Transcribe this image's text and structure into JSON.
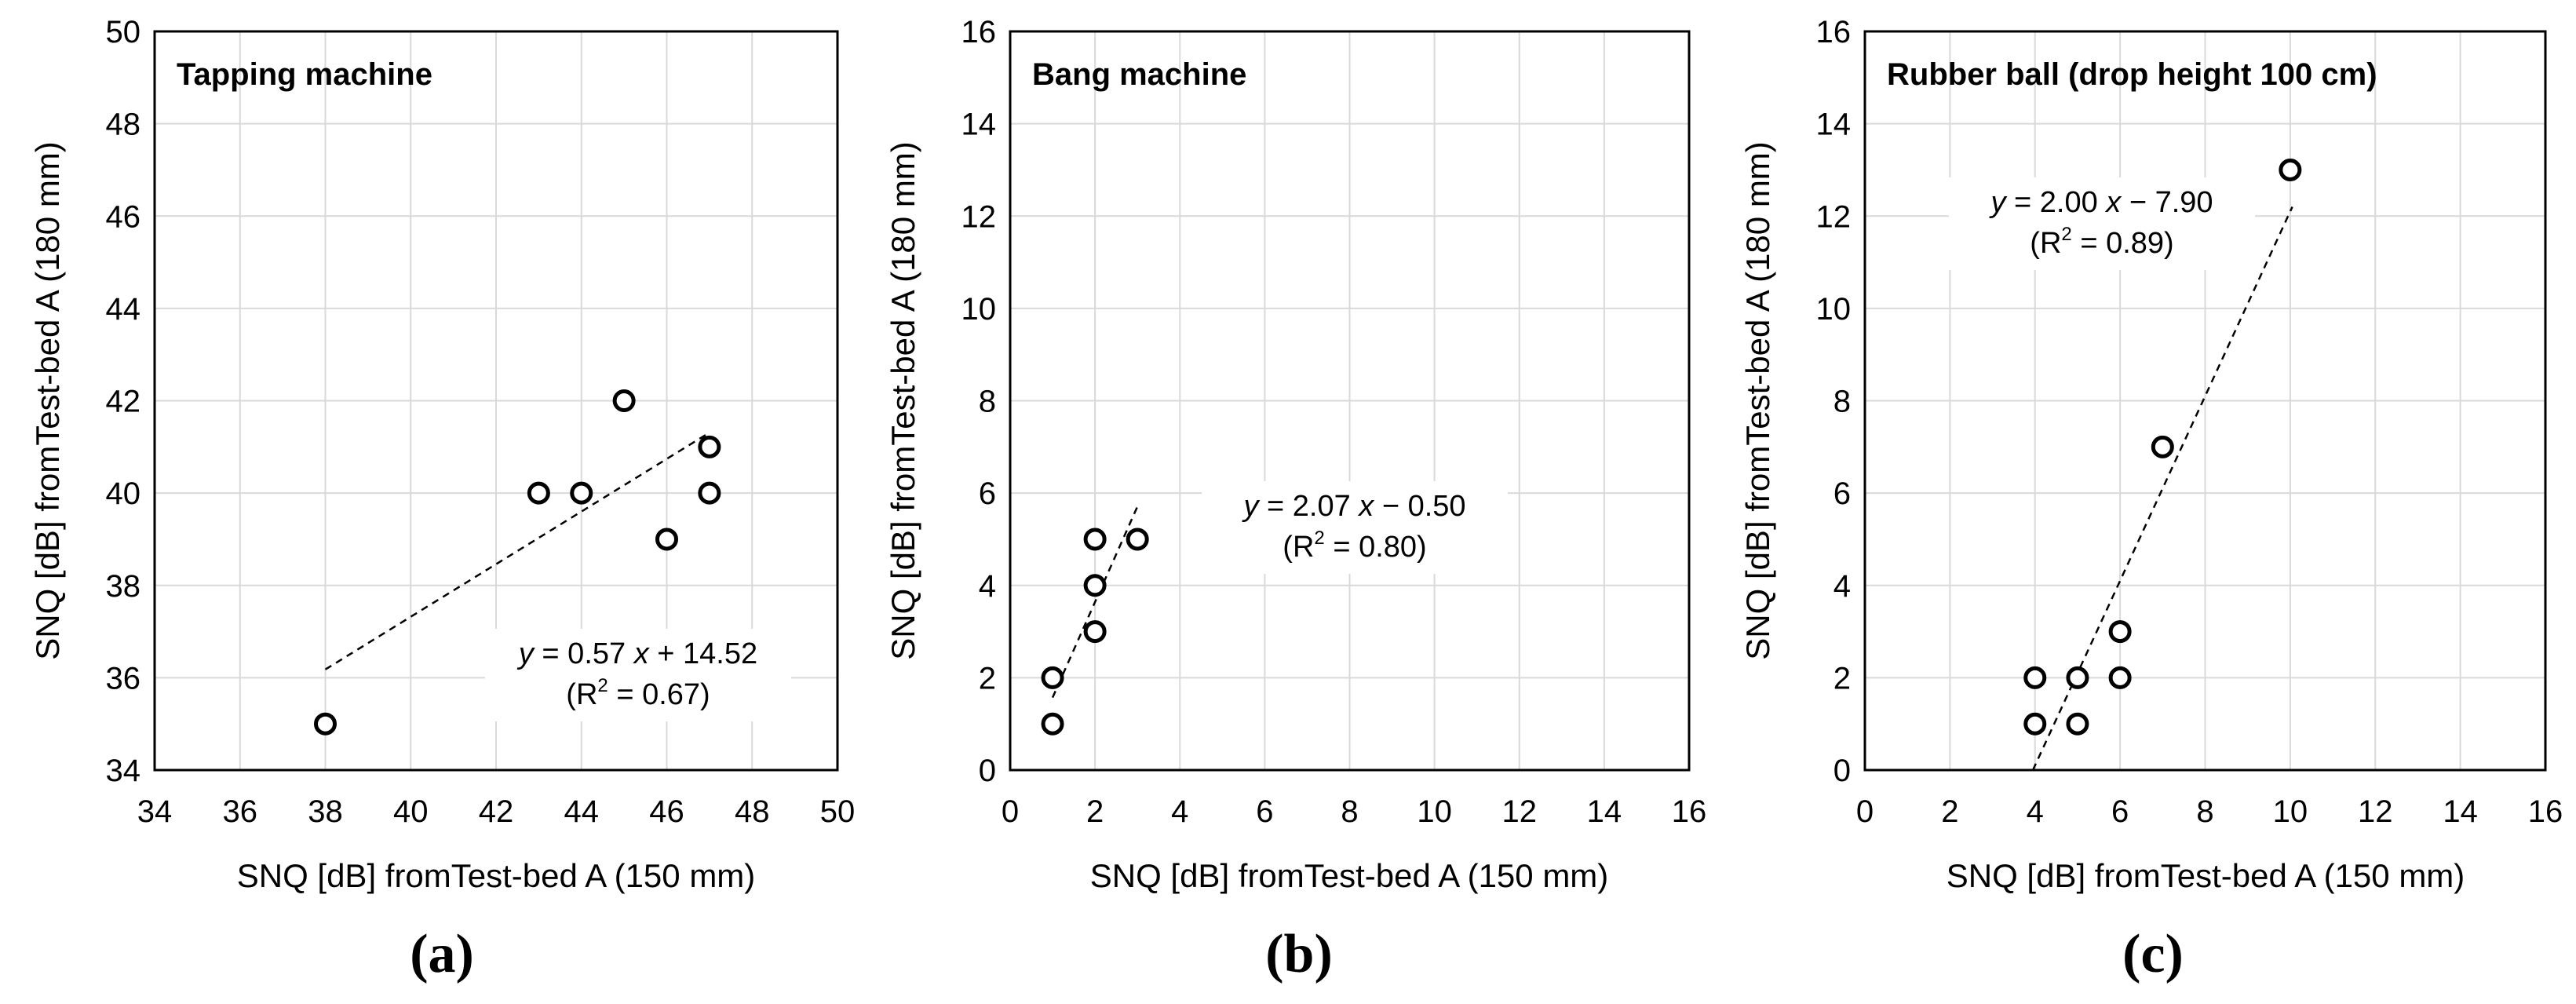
{
  "figure": {
    "panels": [
      {
        "caption": "(a)",
        "equation": {
          "lhs": "y",
          "rest": " = 0.57 ",
          "var": "x",
          "tail": " + 14.52"
        },
        "r2": {
          "pre": "(R",
          "sup": "2",
          "post": " = 0.67)"
        }
      },
      {
        "caption": "(b)",
        "equation": {
          "lhs": "y",
          "rest": " = 2.07 ",
          "var": "x",
          "tail": " − 0.50"
        },
        "r2": {
          "pre": "(R",
          "sup": "2",
          "post": " = 0.80)"
        }
      },
      {
        "caption": "(c)",
        "equation": {
          "lhs": "y",
          "rest": " = 2.00 ",
          "var": "x",
          "tail": " − 7.90"
        },
        "r2": {
          "pre": "(R",
          "sup": "2",
          "post": " = 0.89)"
        }
      }
    ]
  },
  "chart_data": [
    {
      "type": "scatter",
      "title": "Tapping machine",
      "xlabel": "SNQ [dB] fromTest-bed A (150 mm)",
      "ylabel": "SNQ [dB] fromTest-bed A (180 mm)",
      "xlim": [
        34,
        50
      ],
      "ylim": [
        34,
        50
      ],
      "xticks": [
        34,
        36,
        38,
        40,
        42,
        44,
        46,
        48,
        50
      ],
      "yticks": [
        34,
        36,
        38,
        40,
        42,
        44,
        46,
        48,
        50
      ],
      "grid": true,
      "points": [
        {
          "x": 38,
          "y": 35
        },
        {
          "x": 43,
          "y": 40
        },
        {
          "x": 44,
          "y": 40
        },
        {
          "x": 45,
          "y": 42
        },
        {
          "x": 46,
          "y": 39
        },
        {
          "x": 47,
          "y": 41
        },
        {
          "x": 47,
          "y": 40
        }
      ],
      "trendline": {
        "slope": 0.57,
        "intercept": 14.52,
        "x_range": [
          38,
          47
        ],
        "r2": 0.67
      }
    },
    {
      "type": "scatter",
      "title": "Bang machine",
      "xlabel": "SNQ [dB] fromTest-bed A (150 mm)",
      "ylabel": "SNQ [dB] fromTest-bed A (180 mm)",
      "xlim": [
        0,
        16
      ],
      "ylim": [
        0,
        16
      ],
      "xticks": [
        0,
        2,
        4,
        6,
        8,
        10,
        12,
        14,
        16
      ],
      "yticks": [
        0,
        2,
        4,
        6,
        8,
        10,
        12,
        14,
        16
      ],
      "grid": true,
      "points": [
        {
          "x": 1,
          "y": 1
        },
        {
          "x": 1,
          "y": 2
        },
        {
          "x": 2,
          "y": 3
        },
        {
          "x": 2,
          "y": 4
        },
        {
          "x": 2,
          "y": 5
        },
        {
          "x": 3,
          "y": 5
        }
      ],
      "trendline": {
        "slope": 2.07,
        "intercept": -0.5,
        "x_range": [
          1,
          3
        ],
        "r2": 0.8
      }
    },
    {
      "type": "scatter",
      "title": "Rubber ball (drop height 100 cm)",
      "xlabel": "SNQ [dB] fromTest-bed A (150 mm)",
      "ylabel": "SNQ [dB] fromTest-bed A (180 mm)",
      "xlim": [
        0,
        16
      ],
      "ylim": [
        0,
        16
      ],
      "xticks": [
        0,
        2,
        4,
        6,
        8,
        10,
        12,
        14,
        16
      ],
      "yticks": [
        0,
        2,
        4,
        6,
        8,
        10,
        12,
        14,
        16
      ],
      "grid": true,
      "points": [
        {
          "x": 4,
          "y": 1
        },
        {
          "x": 4,
          "y": 2
        },
        {
          "x": 5,
          "y": 1
        },
        {
          "x": 5,
          "y": 2
        },
        {
          "x": 6,
          "y": 2
        },
        {
          "x": 6,
          "y": 3
        },
        {
          "x": 7,
          "y": 7
        },
        {
          "x": 10,
          "y": 13
        }
      ],
      "trendline": {
        "slope": 2.0,
        "intercept": -7.9,
        "x_range": [
          3.95,
          10.05
        ],
        "r2": 0.89
      }
    }
  ]
}
